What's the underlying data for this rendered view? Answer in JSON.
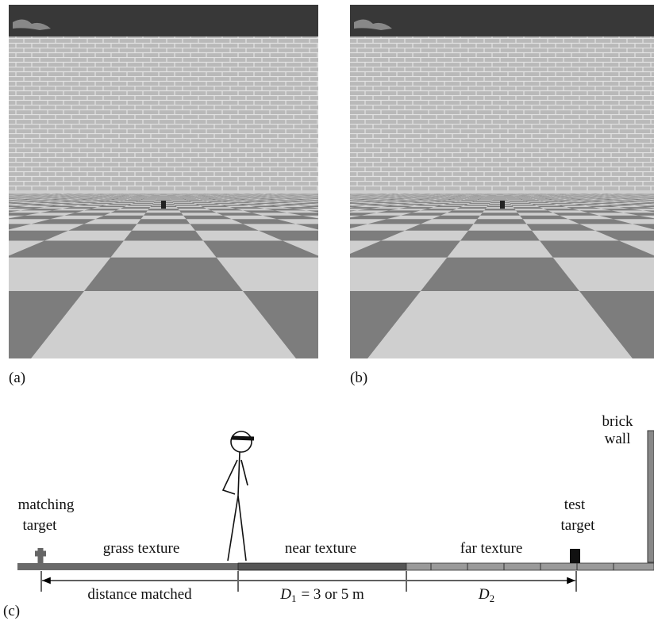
{
  "captions": {
    "a": "(a)",
    "b": "(b)",
    "c": "(c)"
  },
  "diagram": {
    "brick_wall": [
      "brick",
      "wall"
    ],
    "matching_target": [
      "matching",
      "target"
    ],
    "test_target": [
      "test",
      "target"
    ],
    "grass": "grass texture",
    "near": "near texture",
    "far": "far texture",
    "distance_matched": "distance matched",
    "d1": {
      "var": "D",
      "sub": "1",
      "rest": "= 3 or 5 m"
    },
    "d2": {
      "var": "D",
      "sub": "2"
    }
  }
}
